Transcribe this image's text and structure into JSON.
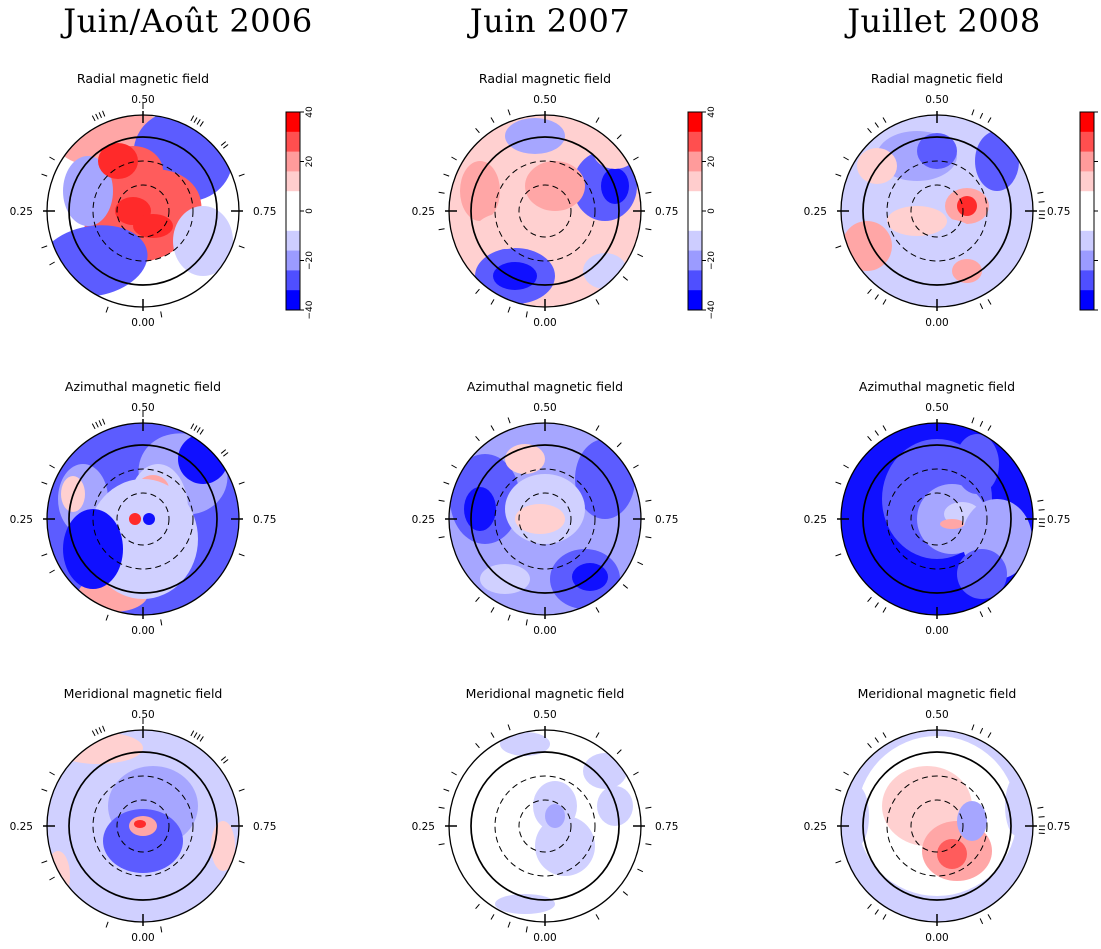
{
  "columns": [
    {
      "title": "Juin/Août 2006"
    },
    {
      "title": "Juin 2007"
    },
    {
      "title": "Juillet 2008"
    }
  ],
  "row_titles": [
    "Radial magnetic field",
    "Azimuthal magnetic field",
    "Meridional magnetic field"
  ],
  "phase_labels": {
    "top": "0.50",
    "bottom": "0.00",
    "left": "0.25",
    "right": "0.75"
  },
  "colorbar": {
    "ticks": [
      "40",
      "20",
      "0",
      "−20",
      "−40"
    ],
    "colors": [
      "#ff0000",
      "#ff4f4f",
      "#ff9b9b",
      "#ffcdcd",
      "#ffffff",
      "#ffffff",
      "#cdcdff",
      "#9b9bff",
      "#4f4fff",
      "#0000ff"
    ]
  },
  "field_colors": {
    "strong_positive": "#ff2a2a",
    "positive": "#ff5c5c",
    "weak_positive": "#ffa6a6",
    "faint_positive": "#ffd0d0",
    "faint_negative": "#d0d0ff",
    "weak_negative": "#a6a6ff",
    "negative": "#5c5cff",
    "strong_negative": "#1010ff"
  }
}
